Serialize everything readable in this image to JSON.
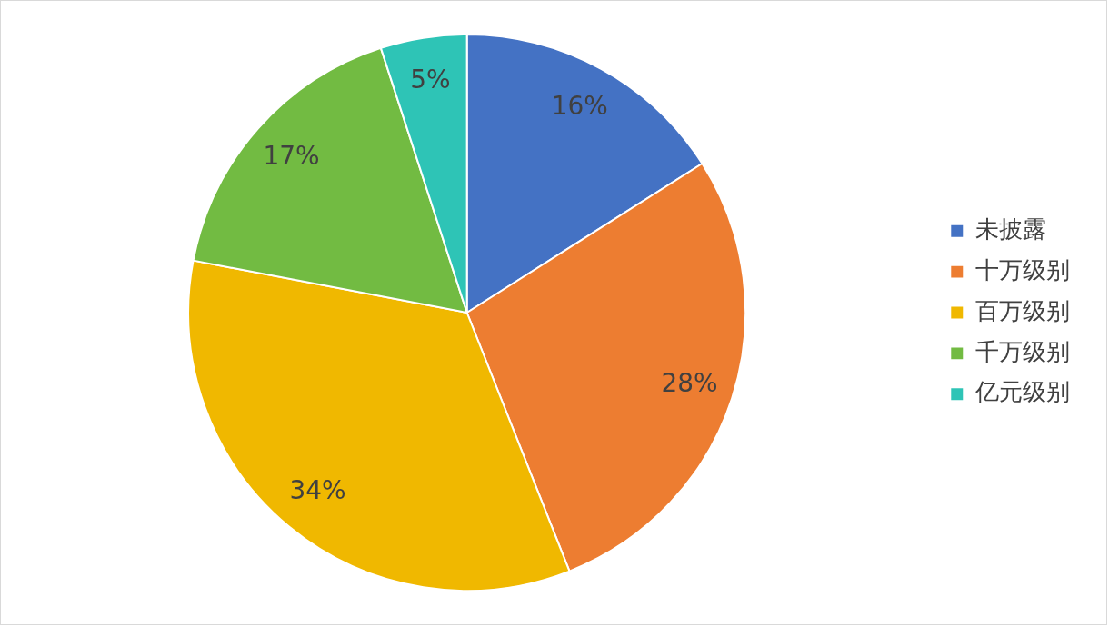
{
  "chart_data": {
    "type": "pie",
    "categories": [
      "未披露",
      "十万级别",
      "百万级别",
      "千万级别",
      "亿元级别"
    ],
    "values": [
      16,
      28,
      34,
      17,
      5
    ],
    "colors": [
      "#4472c4",
      "#ed7d31",
      "#f0b800",
      "#72bb42",
      "#2ec4b6"
    ],
    "value_labels": [
      "16%",
      "28%",
      "34%",
      "17%",
      "5%"
    ],
    "legend": "right"
  }
}
